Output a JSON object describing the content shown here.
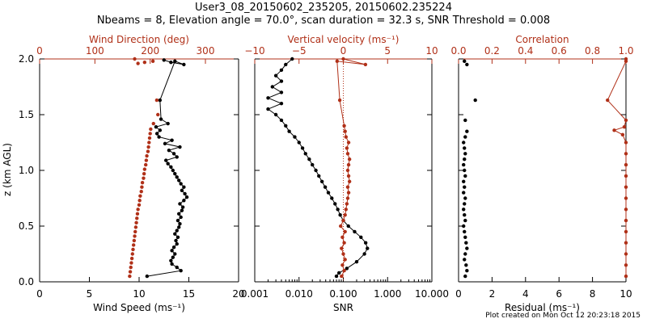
{
  "title": "User3_08_20150602_235205, 20150602.235224",
  "subtitle": "Nbeams = 8, Elevation angle = 70.0°, scan duration = 32.3 s, SNR Threshold = 0.008",
  "footer": "Plot created on Mon Oct 12 20:23:18 2015",
  "colors": {
    "primary": "#000000",
    "secondary": "#b03018"
  },
  "ylabel": "z (km AGL)",
  "chart_data": [
    {
      "type": "line",
      "panel": "left",
      "xlabel": "Wind Speed (ms⁻¹)",
      "xlim": [
        0,
        20
      ],
      "xticks": [
        0,
        5,
        10,
        15,
        20
      ],
      "top_axis_label": "Wind Direction (deg)",
      "top_xlim": [
        0,
        360
      ],
      "top_xticks": [
        0,
        100,
        200,
        300
      ],
      "ylim": [
        0,
        2.0
      ],
      "yticks": [
        0.0,
        0.5,
        1.0,
        1.5,
        2.0
      ],
      "series": [
        {
          "name": "Wind Speed",
          "axis": "bottom",
          "color": "#000000",
          "style": "line+points",
          "points": [
            [
              10.8,
              0.05
            ],
            [
              14.2,
              0.1
            ],
            [
              13.8,
              0.13
            ],
            [
              13.3,
              0.16
            ],
            [
              13.2,
              0.19
            ],
            [
              13.4,
              0.22
            ],
            [
              13.6,
              0.25
            ],
            [
              13.3,
              0.28
            ],
            [
              13.5,
              0.31
            ],
            [
              13.8,
              0.34
            ],
            [
              13.7,
              0.37
            ],
            [
              13.9,
              0.4
            ],
            [
              13.6,
              0.43
            ],
            [
              13.8,
              0.46
            ],
            [
              14.0,
              0.49
            ],
            [
              14.1,
              0.52
            ],
            [
              13.9,
              0.55
            ],
            [
              14.2,
              0.58
            ],
            [
              14.0,
              0.61
            ],
            [
              14.3,
              0.64
            ],
            [
              14.4,
              0.67
            ],
            [
              14.1,
              0.7
            ],
            [
              14.5,
              0.73
            ],
            [
              14.8,
              0.76
            ],
            [
              14.6,
              0.79
            ],
            [
              14.3,
              0.82
            ],
            [
              14.5,
              0.85
            ],
            [
              14.2,
              0.88
            ],
            [
              14.0,
              0.91
            ],
            [
              13.8,
              0.94
            ],
            [
              13.6,
              0.97
            ],
            [
              13.4,
              1.0
            ],
            [
              13.2,
              1.03
            ],
            [
              12.9,
              1.06
            ],
            [
              12.7,
              1.09
            ],
            [
              13.8,
              1.12
            ],
            [
              13.5,
              1.15
            ],
            [
              13.0,
              1.18
            ],
            [
              14.1,
              1.21
            ],
            [
              12.6,
              1.24
            ],
            [
              13.3,
              1.27
            ],
            [
              12.0,
              1.3
            ],
            [
              11.8,
              1.33
            ],
            [
              12.1,
              1.36
            ],
            [
              11.7,
              1.39
            ],
            [
              12.9,
              1.42
            ],
            [
              12.2,
              1.46
            ],
            [
              12.1,
              1.63
            ],
            [
              13.6,
              1.98
            ],
            [
              14.5,
              1.95
            ],
            [
              13.2,
              1.97
            ],
            [
              12.5,
              1.99
            ]
          ]
        },
        {
          "name": "Wind Direction",
          "axis": "top",
          "color": "#b03018",
          "style": "points",
          "points": [
            [
              163,
              0.05
            ],
            [
              164,
              0.09
            ],
            [
              165,
              0.13
            ],
            [
              166,
              0.17
            ],
            [
              167,
              0.21
            ],
            [
              168,
              0.25
            ],
            [
              169,
              0.29
            ],
            [
              170,
              0.33
            ],
            [
              171,
              0.37
            ],
            [
              172,
              0.41
            ],
            [
              173,
              0.45
            ],
            [
              174,
              0.49
            ],
            [
              175,
              0.53
            ],
            [
              176,
              0.57
            ],
            [
              177,
              0.61
            ],
            [
              178,
              0.65
            ],
            [
              180,
              0.69
            ],
            [
              181,
              0.73
            ],
            [
              182,
              0.77
            ],
            [
              184,
              0.81
            ],
            [
              185,
              0.85
            ],
            [
              186,
              0.89
            ],
            [
              188,
              0.93
            ],
            [
              189,
              0.97
            ],
            [
              190,
              1.01
            ],
            [
              192,
              1.05
            ],
            [
              193,
              1.09
            ],
            [
              194,
              1.13
            ],
            [
              196,
              1.17
            ],
            [
              197,
              1.21
            ],
            [
              198,
              1.25
            ],
            [
              199,
              1.29
            ],
            [
              200,
              1.33
            ],
            [
              201,
              1.37
            ],
            [
              206,
              1.42
            ],
            [
              214,
              1.5
            ],
            [
              212,
              1.63
            ],
            [
              205,
              1.98
            ],
            [
              190,
              1.97
            ],
            [
              178,
              1.96
            ],
            [
              172,
              2.0
            ]
          ]
        }
      ]
    },
    {
      "type": "line",
      "panel": "middle",
      "xlabel": "SNR",
      "xscale": "log",
      "xlim": [
        0.001,
        10
      ],
      "xticks": [
        0.001,
        0.01,
        0.1,
        1,
        10
      ],
      "xticklabels": [
        "0.001",
        "0.010",
        "0.100",
        "1.000",
        "10.000"
      ],
      "top_axis_label": "Vertical velocity (ms⁻¹)",
      "top_xlim": [
        -10,
        10
      ],
      "top_xticks": [
        -10,
        -5,
        0,
        5,
        10
      ],
      "ylim": [
        0,
        2.0
      ],
      "zero_line": "dotted",
      "series": [
        {
          "name": "SNR",
          "axis": "bottom",
          "color": "#000000",
          "style": "line+points",
          "points": [
            [
              0.07,
              0.05
            ],
            [
              0.08,
              0.08
            ],
            [
              0.12,
              0.12
            ],
            [
              0.2,
              0.18
            ],
            [
              0.3,
              0.25
            ],
            [
              0.35,
              0.3
            ],
            [
              0.32,
              0.35
            ],
            [
              0.25,
              0.4
            ],
            [
              0.18,
              0.45
            ],
            [
              0.13,
              0.5
            ],
            [
              0.1,
              0.55
            ],
            [
              0.085,
              0.6
            ],
            [
              0.075,
              0.65
            ],
            [
              0.065,
              0.7
            ],
            [
              0.055,
              0.75
            ],
            [
              0.046,
              0.8
            ],
            [
              0.039,
              0.85
            ],
            [
              0.033,
              0.9
            ],
            [
              0.028,
              0.95
            ],
            [
              0.024,
              1.0
            ],
            [
              0.02,
              1.05
            ],
            [
              0.017,
              1.1
            ],
            [
              0.014,
              1.15
            ],
            [
              0.012,
              1.2
            ],
            [
              0.01,
              1.25
            ],
            [
              0.008,
              1.3
            ],
            [
              0.006,
              1.35
            ],
            [
              0.005,
              1.4
            ],
            [
              0.004,
              1.45
            ],
            [
              0.003,
              1.5
            ],
            [
              0.002,
              1.55
            ],
            [
              0.004,
              1.6
            ],
            [
              0.002,
              1.65
            ],
            [
              0.004,
              1.7
            ],
            [
              0.0025,
              1.75
            ],
            [
              0.004,
              1.8
            ],
            [
              0.003,
              1.85
            ],
            [
              0.004,
              1.9
            ],
            [
              0.005,
              1.95
            ],
            [
              0.007,
              2.0
            ]
          ]
        },
        {
          "name": "Vertical velocity",
          "axis": "top",
          "color": "#b03018",
          "style": "line+points",
          "points": [
            [
              -0.2,
              0.05
            ],
            [
              0.1,
              0.1
            ],
            [
              -0.1,
              0.15
            ],
            [
              0.2,
              0.2
            ],
            [
              0.0,
              0.25
            ],
            [
              -0.2,
              0.3
            ],
            [
              0.1,
              0.35
            ],
            [
              -0.1,
              0.4
            ],
            [
              0.2,
              0.45
            ],
            [
              -0.3,
              0.5
            ],
            [
              0.0,
              0.55
            ],
            [
              0.2,
              0.6
            ],
            [
              0.3,
              0.65
            ],
            [
              0.4,
              0.7
            ],
            [
              0.5,
              0.75
            ],
            [
              0.6,
              0.8
            ],
            [
              0.5,
              0.85
            ],
            [
              0.7,
              0.9
            ],
            [
              0.6,
              0.95
            ],
            [
              0.5,
              1.0
            ],
            [
              0.6,
              1.05
            ],
            [
              0.7,
              1.1
            ],
            [
              0.5,
              1.15
            ],
            [
              0.4,
              1.2
            ],
            [
              0.6,
              1.25
            ],
            [
              0.3,
              1.3
            ],
            [
              0.2,
              1.35
            ],
            [
              0.1,
              1.4
            ],
            [
              -0.4,
              1.63
            ],
            [
              -0.7,
              1.98
            ],
            [
              2.5,
              1.95
            ],
            [
              0.0,
              2.0
            ]
          ]
        }
      ]
    },
    {
      "type": "line",
      "panel": "right",
      "xlabel": "Residual (ms⁻¹)",
      "xlim": [
        0,
        10
      ],
      "xticks": [
        0,
        2,
        4,
        6,
        8,
        10
      ],
      "top_axis_label": "Correlation",
      "top_xlim": [
        0,
        1.0
      ],
      "top_xticks": [
        0.0,
        0.2,
        0.4,
        0.6,
        0.8,
        1.0
      ],
      "top_xticklabels": [
        "0.0",
        "0.2",
        "0.4",
        "0.6",
        "0.8",
        "1.0"
      ],
      "ylim": [
        0,
        2.0
      ],
      "series": [
        {
          "name": "Residual",
          "axis": "bottom",
          "color": "#000000",
          "style": "points",
          "points": [
            [
              0.4,
              0.05
            ],
            [
              0.5,
              0.1
            ],
            [
              0.45,
              0.15
            ],
            [
              0.35,
              0.2
            ],
            [
              0.4,
              0.25
            ],
            [
              0.5,
              0.3
            ],
            [
              0.45,
              0.35
            ],
            [
              0.4,
              0.4
            ],
            [
              0.35,
              0.45
            ],
            [
              0.3,
              0.5
            ],
            [
              0.4,
              0.55
            ],
            [
              0.35,
              0.6
            ],
            [
              0.3,
              0.65
            ],
            [
              0.35,
              0.7
            ],
            [
              0.4,
              0.75
            ],
            [
              0.3,
              0.8
            ],
            [
              0.35,
              0.85
            ],
            [
              0.3,
              0.9
            ],
            [
              0.4,
              0.95
            ],
            [
              0.35,
              1.0
            ],
            [
              0.3,
              1.05
            ],
            [
              0.35,
              1.1
            ],
            [
              0.4,
              1.15
            ],
            [
              0.35,
              1.2
            ],
            [
              0.3,
              1.25
            ],
            [
              0.4,
              1.3
            ],
            [
              0.5,
              1.35
            ],
            [
              0.4,
              1.45
            ],
            [
              1.0,
              1.63
            ],
            [
              0.5,
              1.95
            ],
            [
              0.35,
              1.98
            ]
          ]
        },
        {
          "name": "Correlation",
          "axis": "top",
          "color": "#b03018",
          "style": "line+points",
          "points": [
            [
              1.0,
              0.05
            ],
            [
              1.0,
              0.15
            ],
            [
              1.0,
              0.25
            ],
            [
              1.0,
              0.35
            ],
            [
              1.0,
              0.45
            ],
            [
              1.0,
              0.55
            ],
            [
              1.0,
              0.65
            ],
            [
              1.0,
              0.75
            ],
            [
              1.0,
              0.85
            ],
            [
              1.0,
              0.95
            ],
            [
              1.0,
              1.05
            ],
            [
              1.0,
              1.15
            ],
            [
              1.0,
              1.25
            ],
            [
              0.98,
              1.32
            ],
            [
              0.93,
              1.36
            ],
            [
              0.99,
              1.39
            ],
            [
              1.0,
              1.45
            ],
            [
              0.89,
              1.63
            ],
            [
              1.0,
              1.98
            ],
            [
              1.0,
              2.0
            ]
          ]
        }
      ]
    }
  ]
}
